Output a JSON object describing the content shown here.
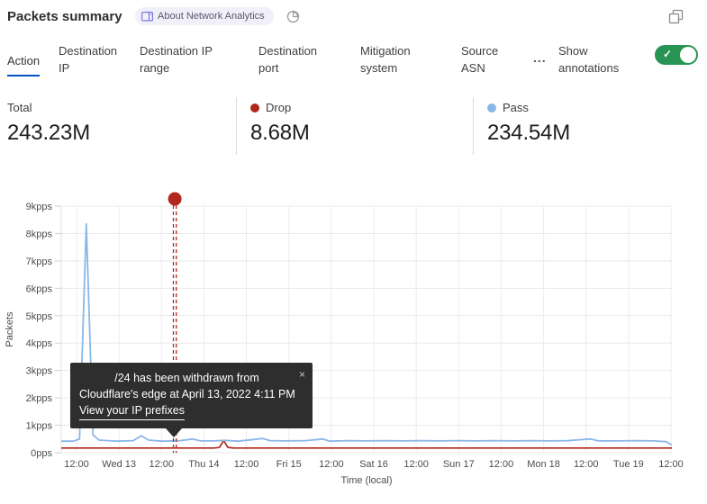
{
  "header": {
    "title": "Packets summary",
    "badge_label": "About Network Analytics"
  },
  "tabs": {
    "items": [
      {
        "label": "Action",
        "active": true
      },
      {
        "label": "Destination IP",
        "active": false
      },
      {
        "label": "Destination IP range",
        "active": false
      },
      {
        "label": "Destination port",
        "active": false
      },
      {
        "label": "Mitigation system",
        "active": false
      },
      {
        "label": "Source ASN",
        "active": false
      }
    ],
    "more_label": "...",
    "annotations_label": "Show annotations",
    "annotations_toggle_state": "on"
  },
  "stats": [
    {
      "label": "Total",
      "value": "243.23M"
    },
    {
      "label": "Drop",
      "value": "8.68M",
      "dot_color": "#b1271b"
    },
    {
      "label": "Pass",
      "value": "234.54M",
      "dot_color": "#8ab6e8"
    }
  ],
  "tooltip": {
    "line1": "/24 has been withdrawn from",
    "line2": "Cloudflare's edge at April 13, 2022 4:11 PM",
    "link_label": "View your IP prefixes",
    "close_glyph": "×"
  },
  "colors": {
    "accent_blue": "#0051c3",
    "drop_red": "#b1271b",
    "pass_blue": "#8ab6e8",
    "toggle_green": "#289453",
    "gridline": "#e9e9e9",
    "axis_text": "#4c4c4c"
  },
  "chart_data": {
    "type": "line",
    "title": "Packets summary",
    "xlabel": "Time (local)",
    "ylabel": "Packets",
    "y_unit": "kpps",
    "ylim": [
      0,
      9
    ],
    "grid": true,
    "y_ticks": [
      "0pps",
      "1kpps",
      "2kpps",
      "3kpps",
      "4kpps",
      "5kpps",
      "6kpps",
      "7kpps",
      "8kpps",
      "9kpps"
    ],
    "x_ticks": [
      "12:00",
      "Wed 13",
      "12:00",
      "Thu 14",
      "12:00",
      "Fri 15",
      "12:00",
      "Sat 16",
      "12:00",
      "Sun 17",
      "12:00",
      "Mon 18",
      "12:00",
      "Tue 19",
      "12:00"
    ],
    "series": [
      {
        "name": "Pass",
        "color": "#8ab6e8",
        "total": "234.54M",
        "points": [
          [
            0.0,
            0.42
          ],
          [
            0.02,
            0.42
          ],
          [
            0.03,
            0.5
          ],
          [
            0.041,
            8.35
          ],
          [
            0.052,
            0.65
          ],
          [
            0.062,
            0.46
          ],
          [
            0.09,
            0.42
          ],
          [
            0.118,
            0.44
          ],
          [
            0.131,
            0.62
          ],
          [
            0.143,
            0.46
          ],
          [
            0.165,
            0.42
          ],
          [
            0.195,
            0.44
          ],
          [
            0.215,
            0.5
          ],
          [
            0.228,
            0.43
          ],
          [
            0.25,
            0.43
          ],
          [
            0.268,
            0.45
          ],
          [
            0.29,
            0.42
          ],
          [
            0.33,
            0.52
          ],
          [
            0.342,
            0.44
          ],
          [
            0.37,
            0.43
          ],
          [
            0.4,
            0.44
          ],
          [
            0.428,
            0.5
          ],
          [
            0.44,
            0.42
          ],
          [
            0.47,
            0.44
          ],
          [
            0.5,
            0.43
          ],
          [
            0.53,
            0.44
          ],
          [
            0.56,
            0.43
          ],
          [
            0.59,
            0.44
          ],
          [
            0.62,
            0.43
          ],
          [
            0.65,
            0.44
          ],
          [
            0.68,
            0.43
          ],
          [
            0.71,
            0.44
          ],
          [
            0.74,
            0.43
          ],
          [
            0.77,
            0.44
          ],
          [
            0.8,
            0.43
          ],
          [
            0.83,
            0.44
          ],
          [
            0.866,
            0.5
          ],
          [
            0.88,
            0.43
          ],
          [
            0.91,
            0.43
          ],
          [
            0.94,
            0.44
          ],
          [
            0.97,
            0.43
          ],
          [
            0.991,
            0.4
          ],
          [
            1.0,
            0.28
          ]
        ]
      },
      {
        "name": "Drop",
        "color": "#b1271b",
        "total": "8.68M",
        "points": [
          [
            0.0,
            0.17
          ],
          [
            0.25,
            0.17
          ],
          [
            0.259,
            0.19
          ],
          [
            0.266,
            0.44
          ],
          [
            0.273,
            0.19
          ],
          [
            0.282,
            0.17
          ],
          [
            1.0,
            0.17
          ]
        ]
      }
    ],
    "annotation": {
      "t": 0.186,
      "color": "#b1271b",
      "style": "double-dashed-vertical",
      "marker": "dot",
      "text": "/24 has been withdrawn from Cloudflare's edge at April 13, 2022 4:11 PM"
    },
    "legend_position": "top"
  }
}
